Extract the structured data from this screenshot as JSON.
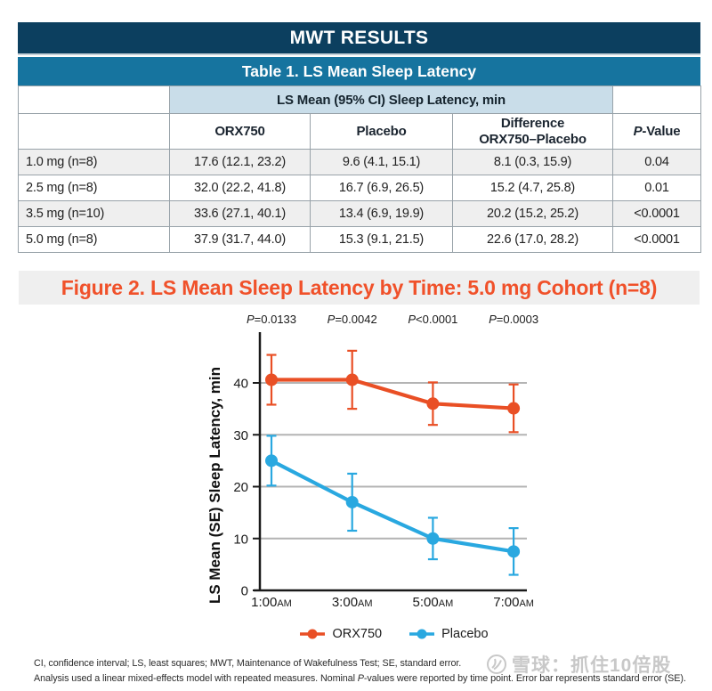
{
  "header": {
    "title": "MWT RESULTS"
  },
  "table": {
    "title": "Table 1. LS Mean Sleep Latency",
    "span_header": "LS Mean (95% CI) Sleep Latency, min",
    "columns": [
      "",
      "ORX750",
      "Placebo",
      "Difference\nORX750–Placebo",
      "P-Value"
    ],
    "rows": [
      {
        "label": "1.0 mg (n=8)",
        "orx750": "17.6 (12.1, 23.2)",
        "placebo": "9.6 (4.1, 15.1)",
        "difference": "8.1 (0.3, 15.9)",
        "p_value": "0.04"
      },
      {
        "label": "2.5 mg (n=8)",
        "orx750": "32.0 (22.2, 41.8)",
        "placebo": "16.7 (6.9, 26.5)",
        "difference": "15.2 (4.7, 25.8)",
        "p_value": "0.01"
      },
      {
        "label": "3.5 mg (n=10)",
        "orx750": "33.6 (27.1, 40.1)",
        "placebo": "13.4 (6.9, 19.9)",
        "difference": "20.2 (15.2, 25.2)",
        "p_value": "<0.0001"
      },
      {
        "label": "5.0 mg (n=8)",
        "orx750": "37.9 (31.7, 44.0)",
        "placebo": "15.3 (9.1, 21.5)",
        "difference": "22.6 (17.0, 28.2)",
        "p_value": "<0.0001"
      }
    ]
  },
  "figure": {
    "title": "Figure 2. LS Mean Sleep Latency by Time: 5.0 mg Cohort (n=8)"
  },
  "chart_data": {
    "type": "line",
    "x": [
      "1:00AM",
      "3:00AM",
      "5:00AM",
      "7:00AM"
    ],
    "ylabel": "LS Mean (SE) Sleep Latency, min",
    "ylim": [
      0,
      50
    ],
    "yticks": [
      0,
      10,
      20,
      30,
      40
    ],
    "grid": true,
    "legend_position": "bottom",
    "annotations": [
      "P=0.0133",
      "P=0.0042",
      "P<0.0001",
      "P=0.0003"
    ],
    "series": [
      {
        "name": "ORX750",
        "color": "#e94f25",
        "values": [
          40.6,
          40.6,
          36.0,
          35.1
        ],
        "se": [
          4.8,
          5.6,
          4.1,
          4.6
        ]
      },
      {
        "name": "Placebo",
        "color": "#29a8e0",
        "values": [
          25.0,
          17.0,
          10.0,
          7.5
        ],
        "se": [
          4.8,
          5.5,
          4.0,
          4.5
        ]
      }
    ]
  },
  "footer": {
    "line1": "CI, confidence interval; LS, least squares; MWT, Maintenance of Wakefulness Test; SE, standard error.",
    "line2": "Analysis used a linear mixed-effects model with repeated measures. Nominal P-values were reported by time point. Error bar represents standard error (SE)."
  },
  "watermark": {
    "text": "雪球：抓住10倍股",
    "logo": "xueqiu-logo"
  }
}
